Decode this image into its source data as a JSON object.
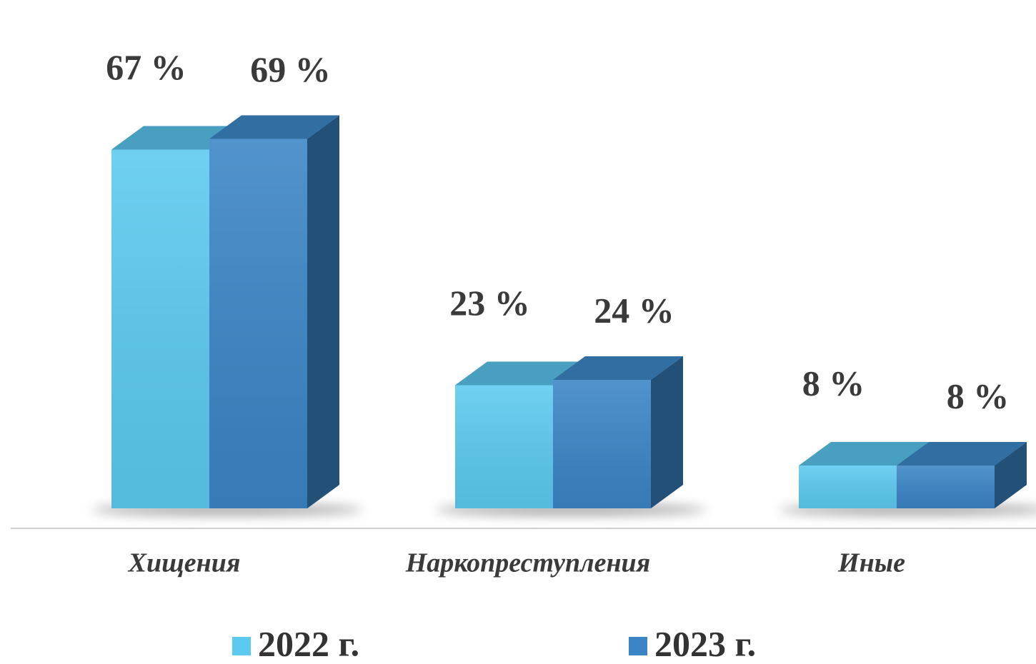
{
  "chart_data": {
    "type": "bar3d",
    "categories": [
      "Хищения",
      "Наркопреступления",
      "Иные"
    ],
    "series": [
      {
        "name": "2022 г.",
        "color": "#5ccaf0",
        "values": [
          67,
          23,
          8
        ],
        "value_labels": [
          "67 %",
          "23 %",
          "8 %"
        ]
      },
      {
        "name": "2023 г.",
        "color": "#3b85c6",
        "values": [
          69,
          24,
          8
        ],
        "value_labels": [
          "69 %",
          "24 %",
          "8 %"
        ]
      }
    ],
    "ylim": [
      0,
      80
    ]
  }
}
